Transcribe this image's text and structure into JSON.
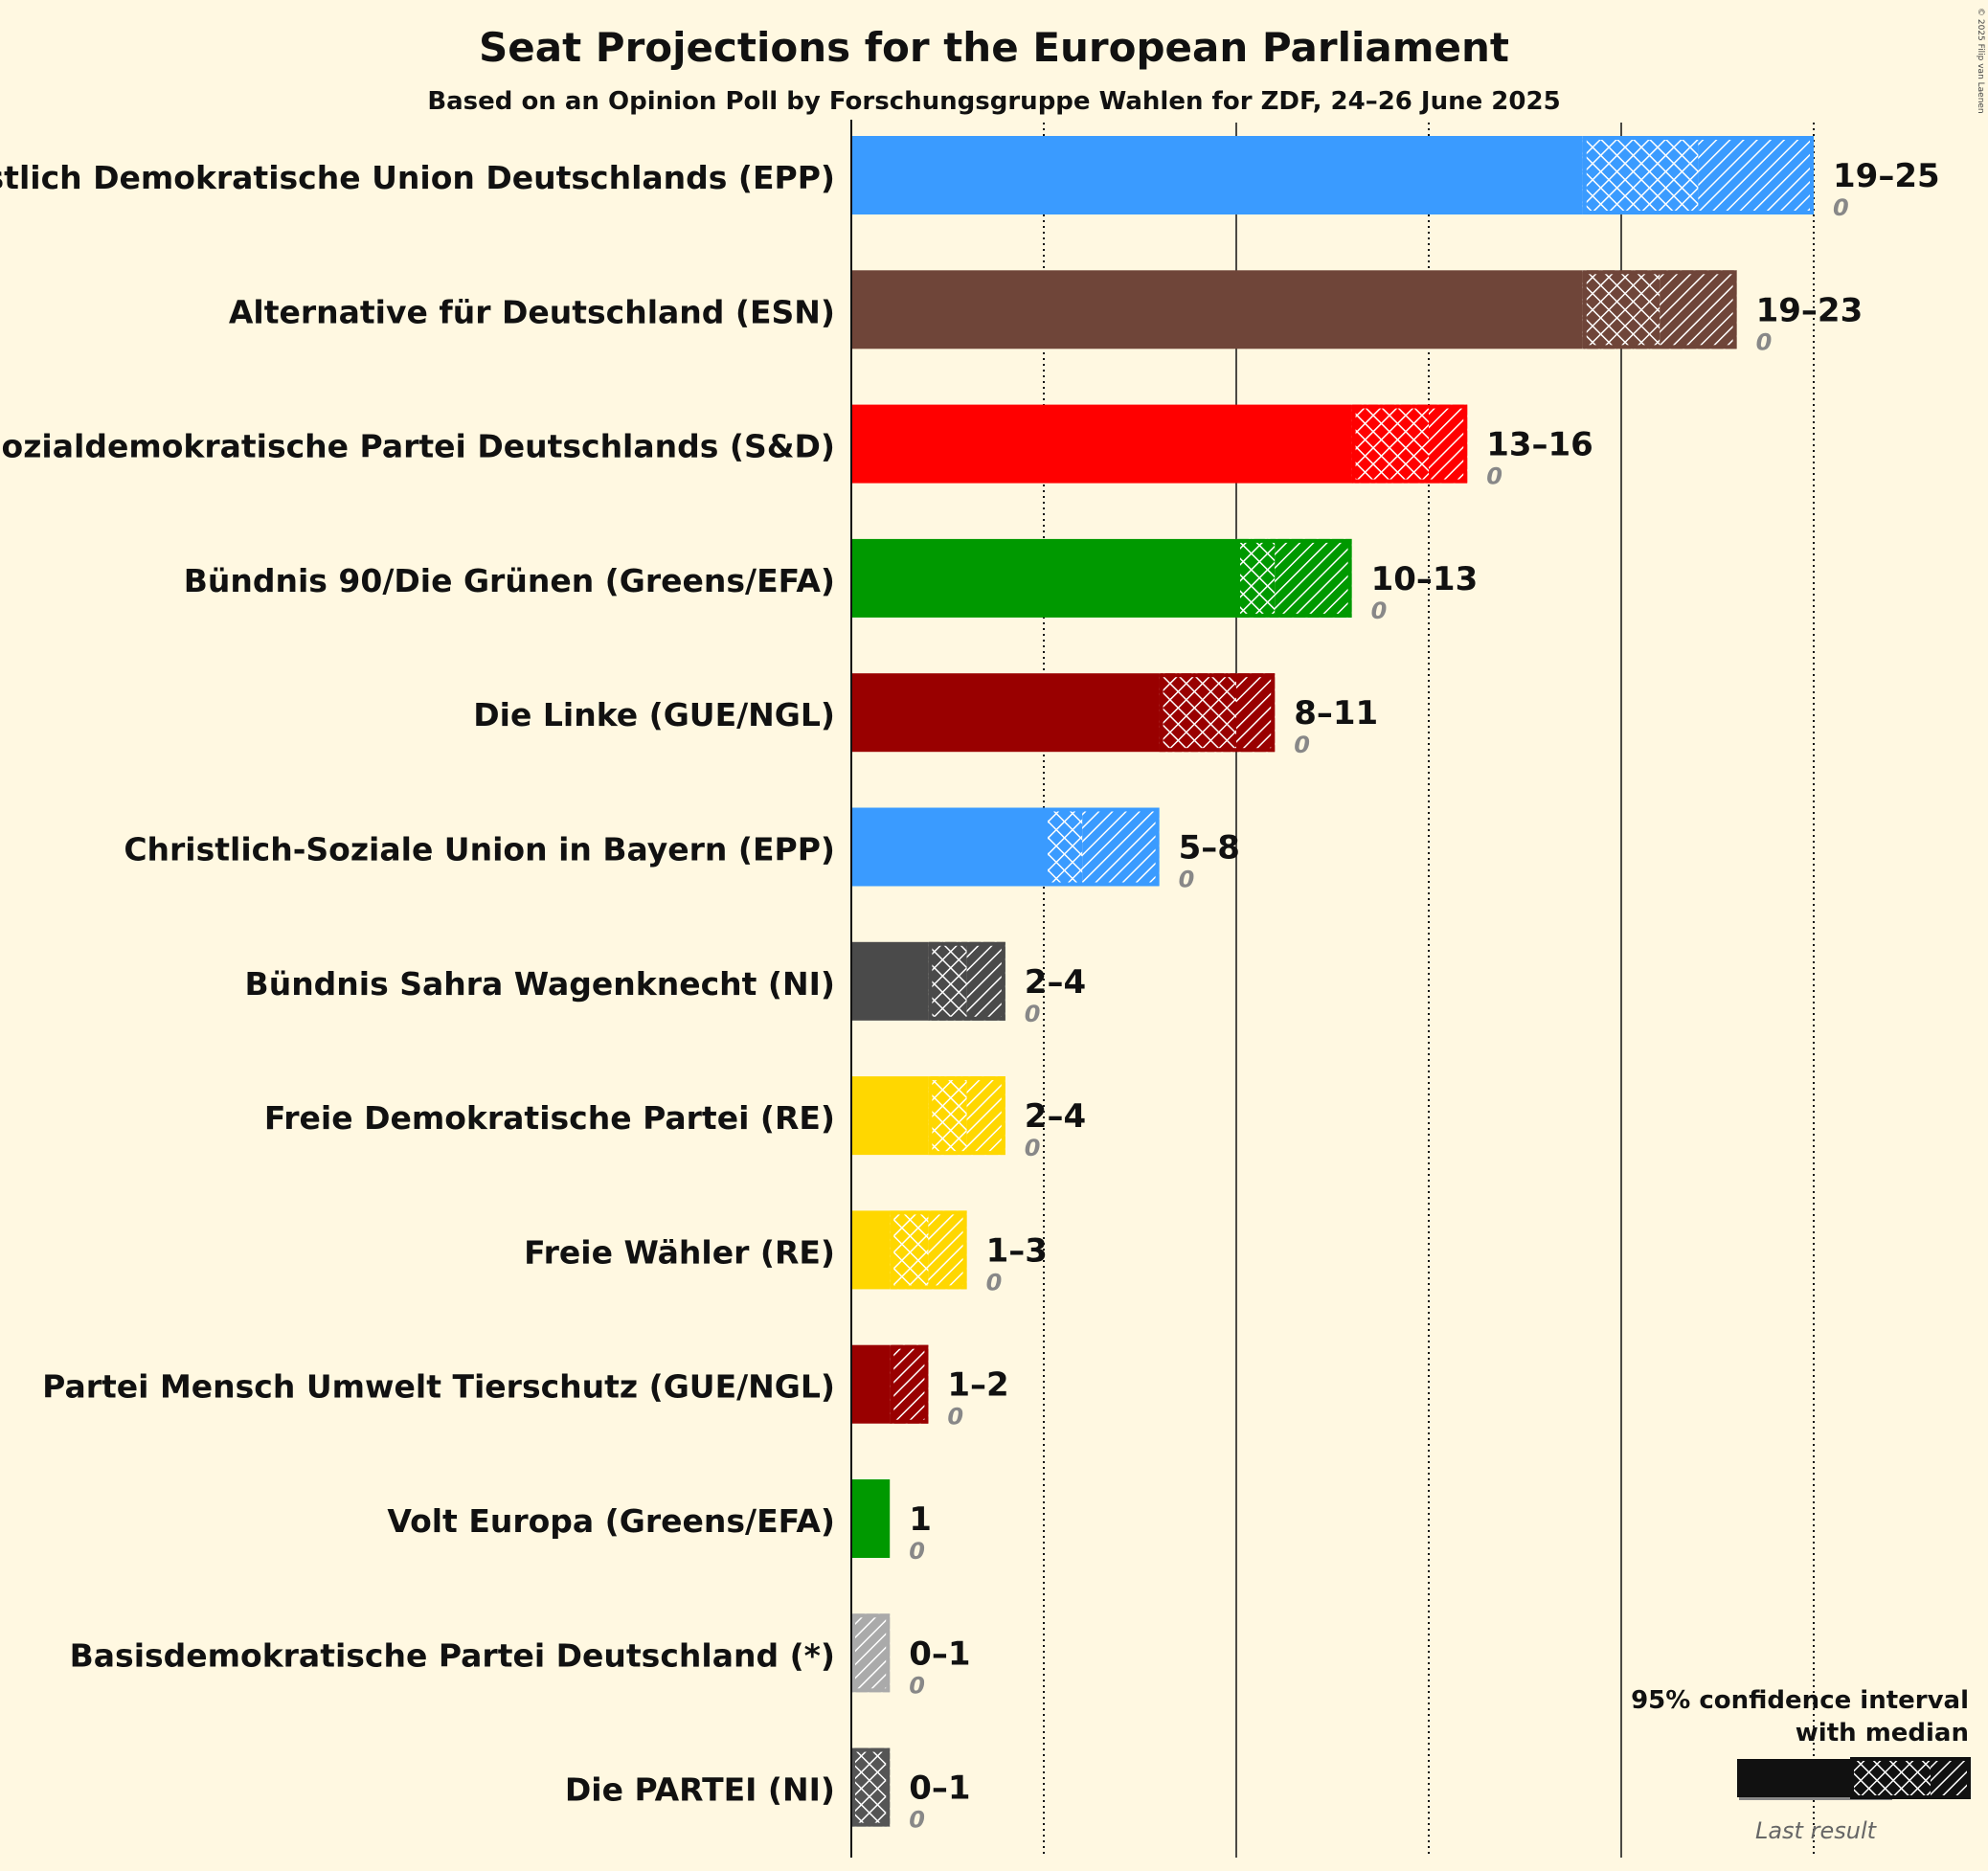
{
  "copyright": "© 2025 Filip van Laenen",
  "chart_data": {
    "type": "bar",
    "title": "Seat Projections for the European Parliament",
    "subtitle": "Based on an Opinion Poll by Forschungsgruppe Wahlen for ZDF, 24–26 June 2025",
    "xlim": [
      0,
      25
    ],
    "gridlines": [
      5,
      10,
      15,
      20,
      25
    ],
    "grid": true,
    "legend": {
      "title": "95% confidence interval with median",
      "title_line1": "95% confidence interval",
      "title_line2": "with median",
      "last_result_label": "Last result",
      "placement": "bottom-right"
    },
    "series": [
      {
        "party": "Christlich Demokratische Union Deutschlands (EPP)",
        "low": 19,
        "median": 22,
        "high": 25,
        "range_label": "19–25",
        "last_result": 0,
        "last_result_label": "0",
        "color": "#3a9bff",
        "hatch": "#ffffff"
      },
      {
        "party": "Alternative für Deutschland (ESN)",
        "low": 19,
        "median": 21,
        "high": 23,
        "range_label": "19–23",
        "last_result": 0,
        "last_result_label": "0",
        "color": "#6f4539",
        "hatch": "#ffffff"
      },
      {
        "party": "Sozialdemokratische Partei Deutschlands (S&D)",
        "low": 13,
        "median": 15,
        "high": 16,
        "range_label": "13–16",
        "last_result": 0,
        "last_result_label": "0",
        "color": "#ff0000",
        "hatch": "#ffffff"
      },
      {
        "party": "Bündnis 90/Die Grünen (Greens/EFA)",
        "low": 10,
        "median": 11,
        "high": 13,
        "range_label": "10–13",
        "last_result": 0,
        "last_result_label": "0",
        "color": "#009900",
        "hatch": "#ffffff"
      },
      {
        "party": "Die Linke (GUE/NGL)",
        "low": 8,
        "median": 10,
        "high": 11,
        "range_label": "8–11",
        "last_result": 0,
        "last_result_label": "0",
        "color": "#990000",
        "hatch": "#ffffff"
      },
      {
        "party": "Christlich-Soziale Union in Bayern (EPP)",
        "low": 5,
        "median": 6,
        "high": 8,
        "range_label": "5–8",
        "last_result": 0,
        "last_result_label": "0",
        "color": "#3a9bff",
        "hatch": "#ffffff"
      },
      {
        "party": "Bündnis Sahra Wagenknecht (NI)",
        "low": 2,
        "median": 3,
        "high": 4,
        "range_label": "2–4",
        "last_result": 0,
        "last_result_label": "0",
        "color": "#4a4a4a",
        "hatch": "#ffffff"
      },
      {
        "party": "Freie Demokratische Partei (RE)",
        "low": 2,
        "median": 3,
        "high": 4,
        "range_label": "2–4",
        "last_result": 0,
        "last_result_label": "0",
        "color": "#ffd700",
        "hatch": "#ffffff"
      },
      {
        "party": "Freie Wähler (RE)",
        "low": 1,
        "median": 2,
        "high": 3,
        "range_label": "1–3",
        "last_result": 0,
        "last_result_label": "0",
        "color": "#ffd700",
        "hatch": "#ffffff"
      },
      {
        "party": "Partei Mensch Umwelt Tierschutz (GUE/NGL)",
        "low": 1,
        "median": 1,
        "high": 2,
        "range_label": "1–2",
        "last_result": 0,
        "last_result_label": "0",
        "color": "#990000",
        "hatch": "#ffffff"
      },
      {
        "party": "Volt Europa (Greens/EFA)",
        "low": 1,
        "median": 1,
        "high": 1,
        "range_label": "1",
        "last_result": 0,
        "last_result_label": "0",
        "color": "#009900",
        "hatch": "#ffffff"
      },
      {
        "party": "Basisdemokratische Partei Deutschland (*)",
        "low": 0,
        "median": 0,
        "high": 1,
        "range_label": "0–1",
        "last_result": 0,
        "last_result_label": "0",
        "color": "#aaaaaa",
        "hatch": "#ffffff"
      },
      {
        "party": "Die PARTEI (NI)",
        "low": 0,
        "median": 1,
        "high": 1,
        "range_label": "0–1",
        "last_result": 0,
        "last_result_label": "0",
        "color": "#555555",
        "hatch": "#ffffff"
      }
    ]
  }
}
